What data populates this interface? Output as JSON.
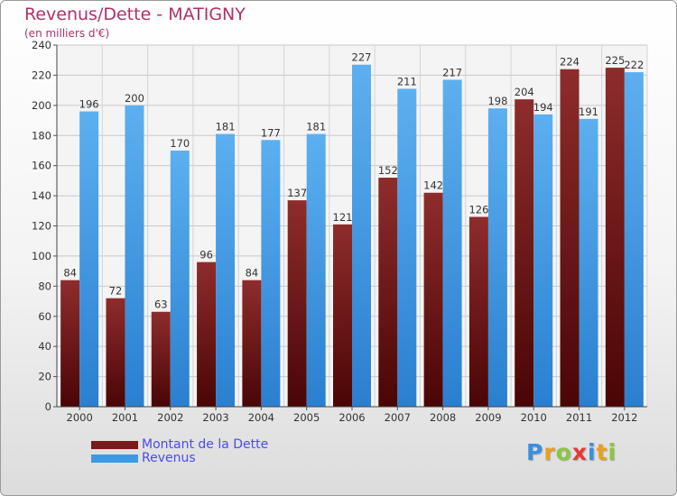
{
  "chart_data": {
    "type": "bar",
    "title": "Revenus/Dette - MATIGNY",
    "subtitle": "(en milliers d'€)",
    "categories": [
      "2000",
      "2001",
      "2002",
      "2003",
      "2004",
      "2005",
      "2006",
      "2007",
      "2008",
      "2009",
      "2010",
      "2011",
      "2012"
    ],
    "series": [
      {
        "name": "Montant de la Dette",
        "color": "#7a1a1a",
        "values": [
          84,
          72,
          63,
          96,
          84,
          137,
          121,
          152,
          142,
          126,
          204,
          224,
          225
        ]
      },
      {
        "name": "Revenus",
        "color": "#3a9ae6",
        "values": [
          196,
          200,
          170,
          181,
          177,
          181,
          227,
          211,
          217,
          198,
          194,
          191,
          222
        ]
      }
    ],
    "ylim": [
      0,
      240
    ],
    "yticks": [
      0,
      20,
      40,
      60,
      80,
      100,
      120,
      140,
      160,
      180,
      200,
      220,
      240
    ],
    "grid": true,
    "legend_position": "bottom-left"
  },
  "logo": {
    "letters": [
      {
        "char": "P",
        "color": "#3a8fe0"
      },
      {
        "char": "r",
        "color": "#e8a020"
      },
      {
        "char": "o",
        "color": "#8cc63f"
      },
      {
        "char": "x",
        "color": "#e53935"
      },
      {
        "char": "i",
        "color": "#3a8fe0"
      },
      {
        "char": "t",
        "color": "#e8a020"
      },
      {
        "char": "i",
        "color": "#8cc63f"
      }
    ]
  }
}
